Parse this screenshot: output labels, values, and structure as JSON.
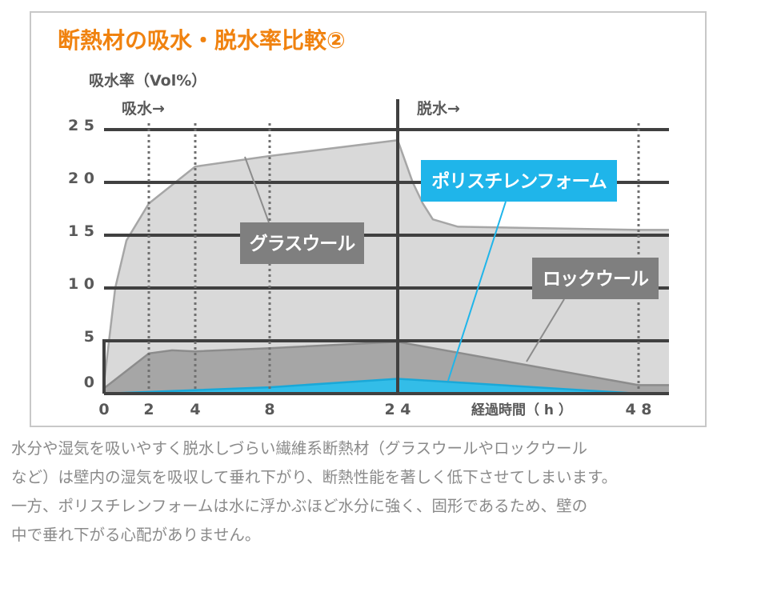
{
  "chart_data": {
    "type": "area",
    "title": "断熱材の吸水・脱水率比較②",
    "ylabel": "吸水率（Vol%）",
    "xlabel": "経過時間（ h ）",
    "phase_labels": [
      "吸水→",
      "脱水→"
    ],
    "x_ticks": [
      {
        "label": "0",
        "value": 0
      },
      {
        "label": "2",
        "value": 2
      },
      {
        "label": "4",
        "value": 4
      },
      {
        "label": "8",
        "value": 8
      },
      {
        "label": "2 4",
        "value": 24
      },
      {
        "label": "4 8",
        "value": 48
      }
    ],
    "y_ticks": [
      {
        "label": "0",
        "value": 0
      },
      {
        "label": "5",
        "value": 5
      },
      {
        "label": "1 0",
        "value": 10
      },
      {
        "label": "1 5",
        "value": 15
      },
      {
        "label": "2 0",
        "value": 20
      },
      {
        "label": "2 5",
        "value": 25
      }
    ],
    "ylim": [
      0,
      25
    ],
    "series": [
      {
        "name": "グラスウール",
        "fill": "#d9d9d9",
        "stroke": "#a6a6a6",
        "points": [
          [
            0,
            1
          ],
          [
            0.5,
            10
          ],
          [
            1,
            14.5
          ],
          [
            2,
            18
          ],
          [
            4,
            21.5
          ],
          [
            8,
            22.5
          ],
          [
            24,
            24
          ],
          [
            25.5,
            20
          ],
          [
            26.5,
            18
          ],
          [
            27.5,
            16.5
          ],
          [
            30,
            15.8
          ],
          [
            48,
            15.5
          ]
        ]
      },
      {
        "name": "ロックウール",
        "fill": "#a6a6a6",
        "stroke": "#8c8c8c",
        "points": [
          [
            0,
            0.5
          ],
          [
            2,
            3.8
          ],
          [
            3,
            4.1
          ],
          [
            4,
            4
          ],
          [
            8,
            4.3
          ],
          [
            24,
            4.9
          ],
          [
            48,
            0.8
          ]
        ]
      },
      {
        "name": "ポリスチレンフォーム",
        "fill": "#33bde8",
        "stroke": "#1aa8d8",
        "points": [
          [
            0,
            0
          ],
          [
            8,
            0.6
          ],
          [
            24,
            1.4
          ],
          [
            48,
            0
          ]
        ]
      }
    ],
    "callouts": [
      {
        "text": "グラスウール",
        "bg": "#7f7f7f"
      },
      {
        "text": "ポリスチレンフォーム",
        "bg": "#1fb5ea"
      },
      {
        "text": "ロックウール",
        "bg": "#7f7f7f"
      }
    ]
  },
  "description": [
    "水分や湿気を吸いやすく脱水しづらい繊維系断熱材（グラスウールやロックウール",
    "など）は壁内の湿気を吸収して垂れ下がり、断熱性能を著しく低下させてしまいます。",
    "一方、ポリスチレンフォームは水に浮かぶほど水分に強く、固形であるため、壁の",
    "中で垂れ下がる心配がありません。"
  ]
}
